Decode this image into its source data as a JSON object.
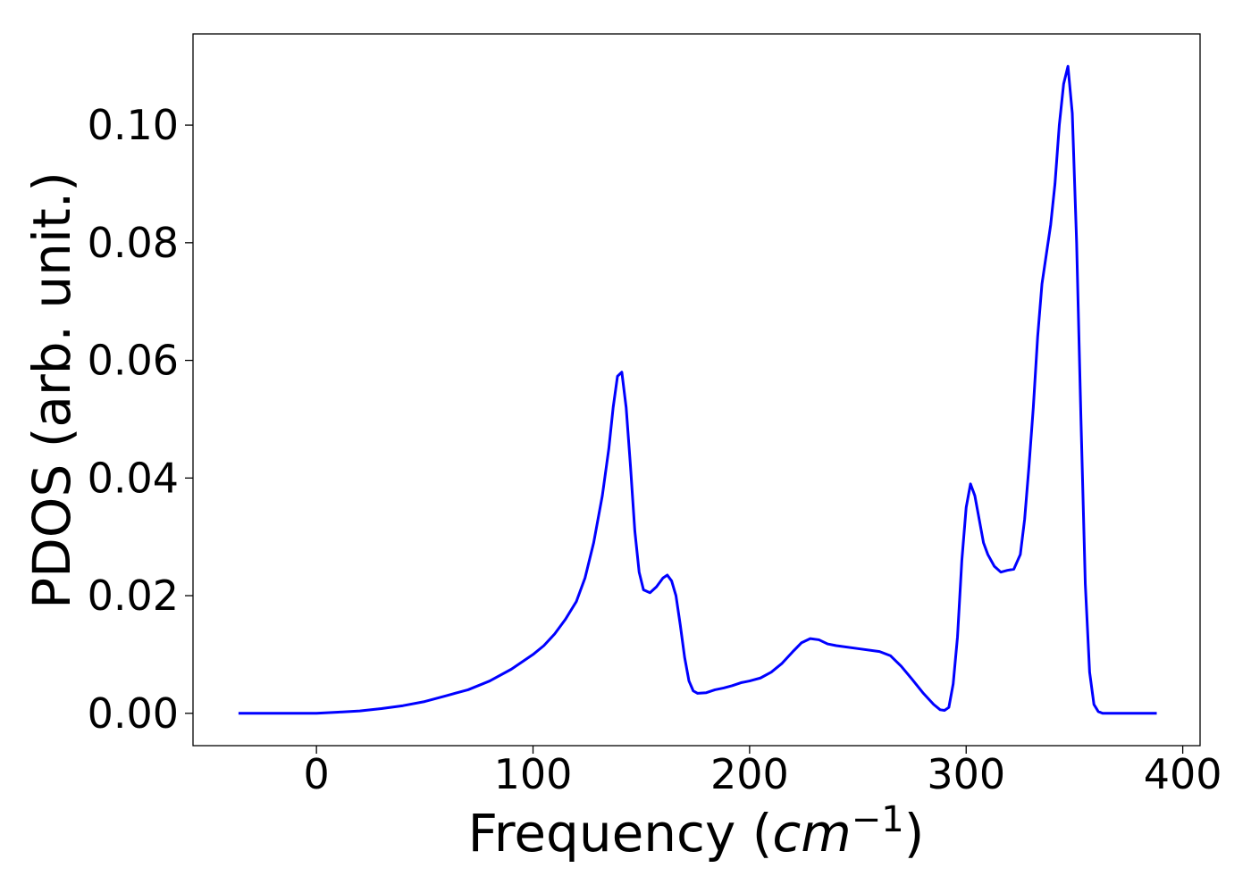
{
  "chart_data": {
    "type": "line",
    "title": "",
    "xlabel": "Frequency (",
    "xlabel_math": "cm",
    "xlabel_sup": "−1",
    "xlabel_close": ")",
    "ylabel": "PDOS (arb. unit.)",
    "xlim": [
      -57,
      408
    ],
    "ylim": [
      -0.0055,
      0.1155
    ],
    "xticks": [
      0,
      100,
      200,
      300,
      400
    ],
    "xtick_labels": [
      "0",
      "100",
      "200",
      "300",
      "400"
    ],
    "yticks": [
      0.0,
      0.02,
      0.04,
      0.06,
      0.08,
      0.1
    ],
    "ytick_labels": [
      "0.00",
      "0.02",
      "0.04",
      "0.06",
      "0.08",
      "0.10"
    ],
    "grid": false,
    "series": [
      {
        "color": "#0000ff",
        "x": [
          -36,
          -20,
          0,
          10,
          20,
          30,
          40,
          50,
          55,
          60,
          70,
          80,
          90,
          100,
          105,
          110,
          115,
          120,
          124,
          128,
          132,
          135,
          137,
          139,
          141,
          143,
          145,
          147,
          149,
          151,
          154,
          157,
          160,
          162,
          164,
          166,
          168,
          170,
          172,
          174,
          176,
          180,
          184,
          188,
          192,
          196,
          200,
          205,
          210,
          215,
          220,
          224,
          228,
          232,
          236,
          240,
          250,
          260,
          265,
          270,
          275,
          280,
          285,
          288,
          290,
          292,
          294,
          296,
          298,
          300,
          302,
          304,
          306,
          308,
          310,
          313,
          316,
          319,
          322,
          325,
          327,
          329,
          331,
          333,
          335,
          337,
          339,
          341,
          343,
          345,
          347,
          349,
          351,
          353,
          355,
          357,
          359,
          361,
          363,
          370,
          388
        ],
        "y": [
          0.0,
          0.0,
          0.0,
          0.0002,
          0.0004,
          0.0008,
          0.0013,
          0.002,
          0.0025,
          0.003,
          0.004,
          0.0055,
          0.0075,
          0.01,
          0.0115,
          0.0135,
          0.016,
          0.019,
          0.023,
          0.029,
          0.037,
          0.045,
          0.052,
          0.0573,
          0.058,
          0.052,
          0.042,
          0.031,
          0.024,
          0.021,
          0.0205,
          0.0215,
          0.023,
          0.0235,
          0.0225,
          0.02,
          0.015,
          0.0095,
          0.0055,
          0.0038,
          0.0034,
          0.0035,
          0.004,
          0.0043,
          0.0047,
          0.0052,
          0.0055,
          0.006,
          0.007,
          0.0085,
          0.0105,
          0.012,
          0.0127,
          0.0125,
          0.0118,
          0.0115,
          0.011,
          0.0105,
          0.0098,
          0.008,
          0.0058,
          0.0035,
          0.0015,
          0.0006,
          0.0005,
          0.001,
          0.005,
          0.013,
          0.026,
          0.035,
          0.039,
          0.037,
          0.033,
          0.029,
          0.027,
          0.025,
          0.024,
          0.0243,
          0.0245,
          0.027,
          0.033,
          0.042,
          0.052,
          0.064,
          0.073,
          0.078,
          0.083,
          0.09,
          0.1,
          0.107,
          0.11,
          0.102,
          0.08,
          0.05,
          0.022,
          0.007,
          0.0015,
          0.0003,
          0.0,
          0.0,
          0.0
        ]
      }
    ]
  }
}
